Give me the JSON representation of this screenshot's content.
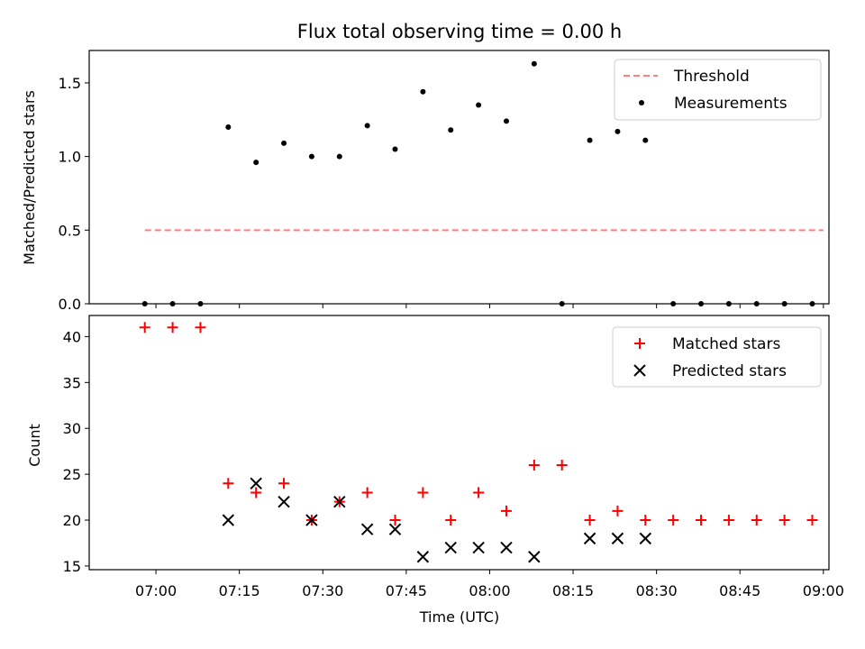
{
  "chart_data": [
    {
      "type": "scatter",
      "title": "Flux total observing time = 0.00 h",
      "ylabel": "Matched/Predicted stars",
      "xlabel": "",
      "ylim": [
        0,
        1.72
      ],
      "yticks": [
        "0.0",
        "0.5",
        "1.0",
        "1.5"
      ],
      "ytick_values": [
        0,
        0.5,
        1.0,
        1.5
      ],
      "x_range": [
        "06:48",
        "09:01"
      ],
      "legend_position": "upper right",
      "series": [
        {
          "name": "Threshold",
          "style": "dashed-line",
          "color": "#ff7f7f",
          "x": [
            "06:58",
            "09:00"
          ],
          "y": [
            0.5,
            0.5
          ]
        },
        {
          "name": "Measurements",
          "style": "dot",
          "color": "#000000",
          "x": [
            "06:58",
            "07:03",
            "07:08",
            "07:13",
            "07:18",
            "07:23",
            "07:28",
            "07:33",
            "07:38",
            "07:43",
            "07:48",
            "07:53",
            "07:58",
            "08:03",
            "08:08",
            "08:13",
            "08:18",
            "08:23",
            "08:28",
            "08:33",
            "08:38",
            "08:43",
            "08:48",
            "08:53",
            "08:58"
          ],
          "y": [
            0,
            0,
            0,
            1.2,
            0.96,
            1.09,
            1.0,
            1.0,
            1.21,
            1.05,
            1.44,
            1.18,
            1.35,
            1.24,
            1.63,
            0,
            1.11,
            1.17,
            1.11,
            0,
            0,
            0,
            0,
            0,
            0
          ]
        }
      ]
    },
    {
      "type": "scatter",
      "title": "",
      "ylabel": "Count",
      "xlabel": "Time (UTC)",
      "ylim": [
        14.6,
        42.3
      ],
      "yticks": [
        "15",
        "20",
        "25",
        "30",
        "35",
        "40"
      ],
      "ytick_values": [
        15,
        20,
        25,
        30,
        35,
        40
      ],
      "xticks": [
        "07:00",
        "07:15",
        "07:30",
        "07:45",
        "08:00",
        "08:15",
        "08:30",
        "08:45",
        "09:00"
      ],
      "xtick_values": [
        "07:00",
        "07:15",
        "07:30",
        "07:45",
        "08:00",
        "08:15",
        "08:30",
        "08:45",
        "09:00"
      ],
      "x_range": [
        "06:48",
        "09:01"
      ],
      "legend_position": "upper right",
      "series": [
        {
          "name": "Matched stars",
          "marker": "plus",
          "color": "#ff0000",
          "x": [
            "06:58",
            "07:03",
            "07:08",
            "07:13",
            "07:18",
            "07:23",
            "07:28",
            "07:33",
            "07:38",
            "07:43",
            "07:48",
            "07:53",
            "07:58",
            "08:03",
            "08:08",
            "08:13",
            "08:18",
            "08:23",
            "08:28",
            "08:33",
            "08:38",
            "08:43",
            "08:48",
            "08:53",
            "08:58"
          ],
          "y": [
            41,
            41,
            41,
            24,
            23,
            24,
            20,
            22,
            23,
            20,
            23,
            20,
            23,
            21,
            26,
            26,
            20,
            21,
            20,
            20,
            20,
            20,
            20,
            20,
            20
          ]
        },
        {
          "name": "Predicted stars",
          "marker": "x",
          "color": "#000000",
          "x": [
            "07:13",
            "07:18",
            "07:23",
            "07:28",
            "07:33",
            "07:38",
            "07:43",
            "07:48",
            "07:53",
            "07:58",
            "08:03",
            "08:08",
            "08:18",
            "08:23",
            "08:28"
          ],
          "y": [
            20,
            24,
            22,
            20,
            22,
            19,
            19,
            16,
            17,
            17,
            17,
            16,
            18,
            18,
            18
          ]
        }
      ]
    }
  ]
}
